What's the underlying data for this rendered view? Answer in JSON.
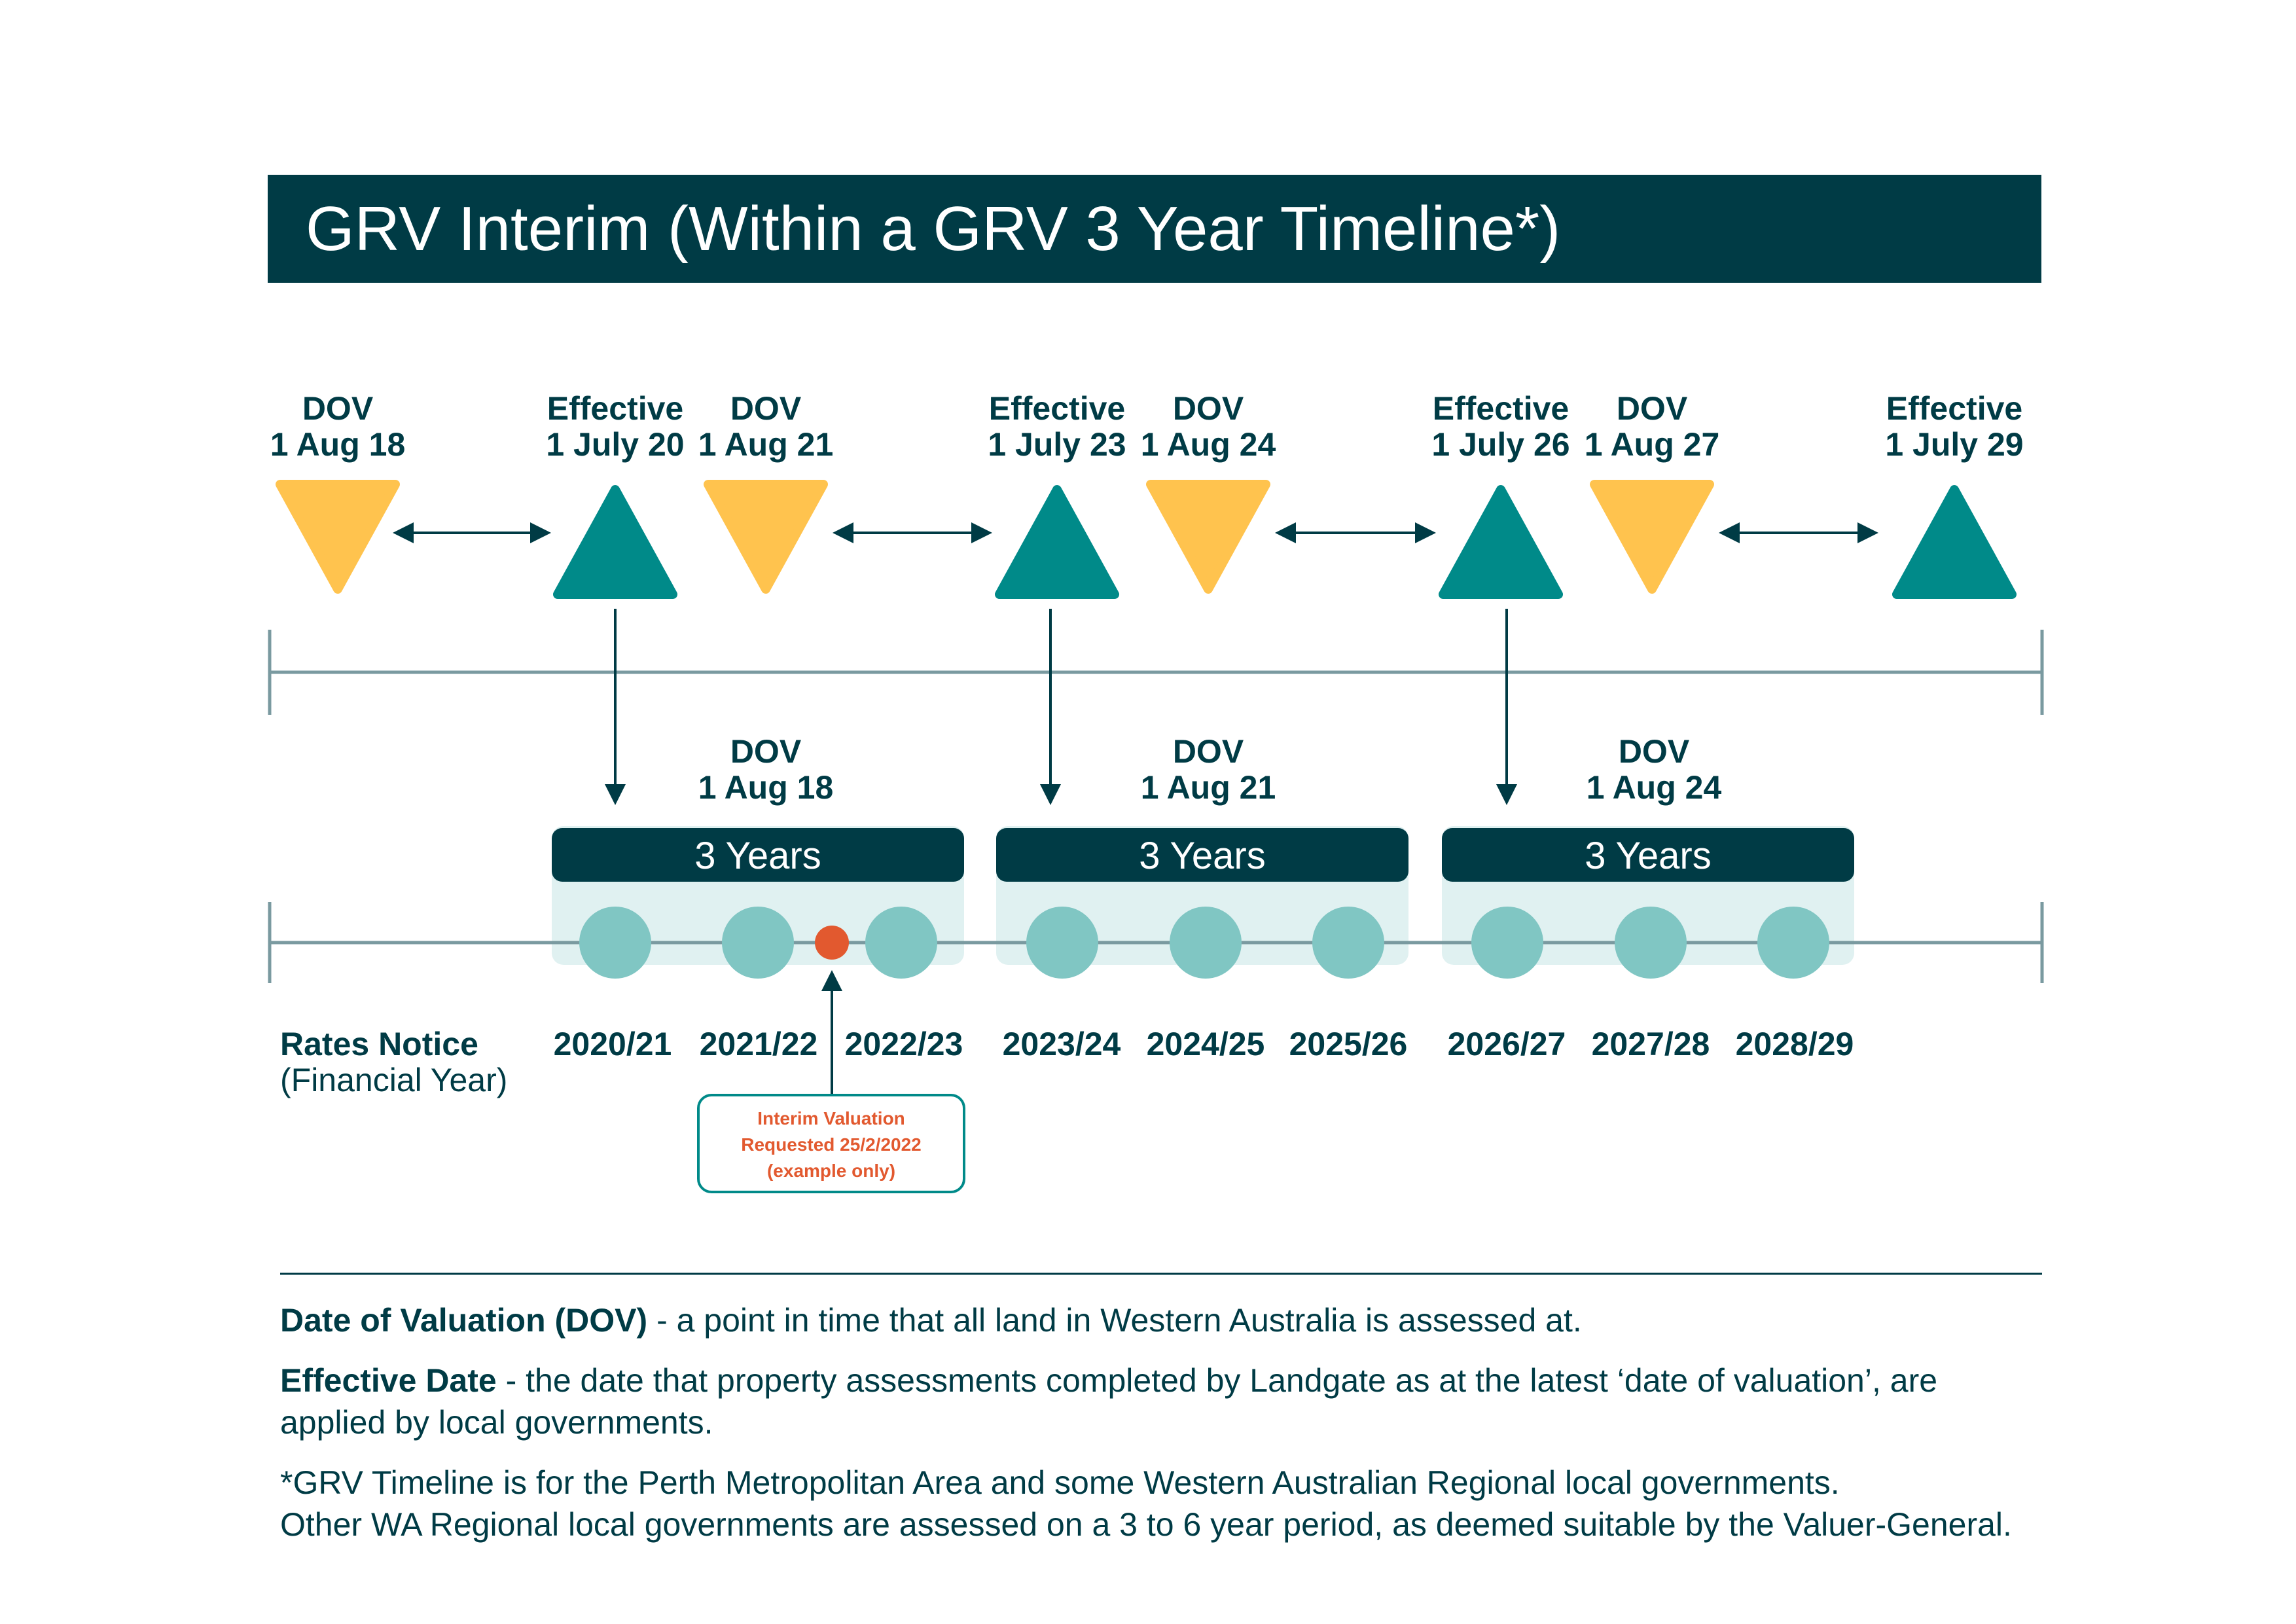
{
  "title": "GRV Interim (Within a GRV 3 Year Timeline*)",
  "colors": {
    "dark_teal": "#003b45",
    "teal": "#008a89",
    "light_teal": "#80c6c3",
    "pale_teal": "#e0f1f1",
    "yellow": "#ffc34e",
    "orange_red": "#e2592f",
    "axis": "#7a9aa0"
  },
  "top_markers": [
    {
      "type": "dov",
      "label": "DOV",
      "date": "1 Aug 18"
    },
    {
      "type": "effective",
      "label": "Effective",
      "date": "1 July 20"
    },
    {
      "type": "dov",
      "label": "DOV",
      "date": "1 Aug 21"
    },
    {
      "type": "effective",
      "label": "Effective",
      "date": "1 July 23"
    },
    {
      "type": "dov",
      "label": "DOV",
      "date": "1 Aug 24"
    },
    {
      "type": "effective",
      "label": "Effective",
      "date": "1 July 26"
    },
    {
      "type": "dov",
      "label": "DOV",
      "date": "1 Aug 27"
    },
    {
      "type": "effective",
      "label": "Effective",
      "date": "1 July 29"
    }
  ],
  "periods": [
    {
      "dov_label": "DOV",
      "dov_date": "1 Aug 18",
      "label": "3 Years",
      "years": [
        "2020/21",
        "2021/22",
        "2022/23"
      ]
    },
    {
      "dov_label": "DOV",
      "dov_date": "1 Aug 21",
      "label": "3 Years",
      "years": [
        "2023/24",
        "2024/25",
        "2025/26"
      ]
    },
    {
      "dov_label": "DOV",
      "dov_date": "1 Aug 24",
      "label": "3 Years",
      "years": [
        "2026/27",
        "2027/28",
        "2028/29"
      ]
    }
  ],
  "rates_notice": {
    "label": "Rates Notice",
    "sublabel": "(Financial Year)"
  },
  "interim_callout": [
    "Interim Valuation",
    "Requested 25/2/2022",
    "(example only)"
  ],
  "legend": {
    "dov_term": "Date of Valuation (DOV)",
    "dov_text": " - a point in time that all land in Western Australia is assessed at.",
    "effective_term": "Effective Date",
    "effective_text": " - the date that property assessments completed by Landgate as at the latest ‘date of valuation’, are applied by local governments.",
    "footnote_1": "*GRV Timeline is for the Perth Metropolitan Area and some Western Australian Regional local governments.",
    "footnote_2": "Other WA Regional local governments are assessed on a 3 to 6 year period, as deemed suitable by the Valuer-General."
  }
}
